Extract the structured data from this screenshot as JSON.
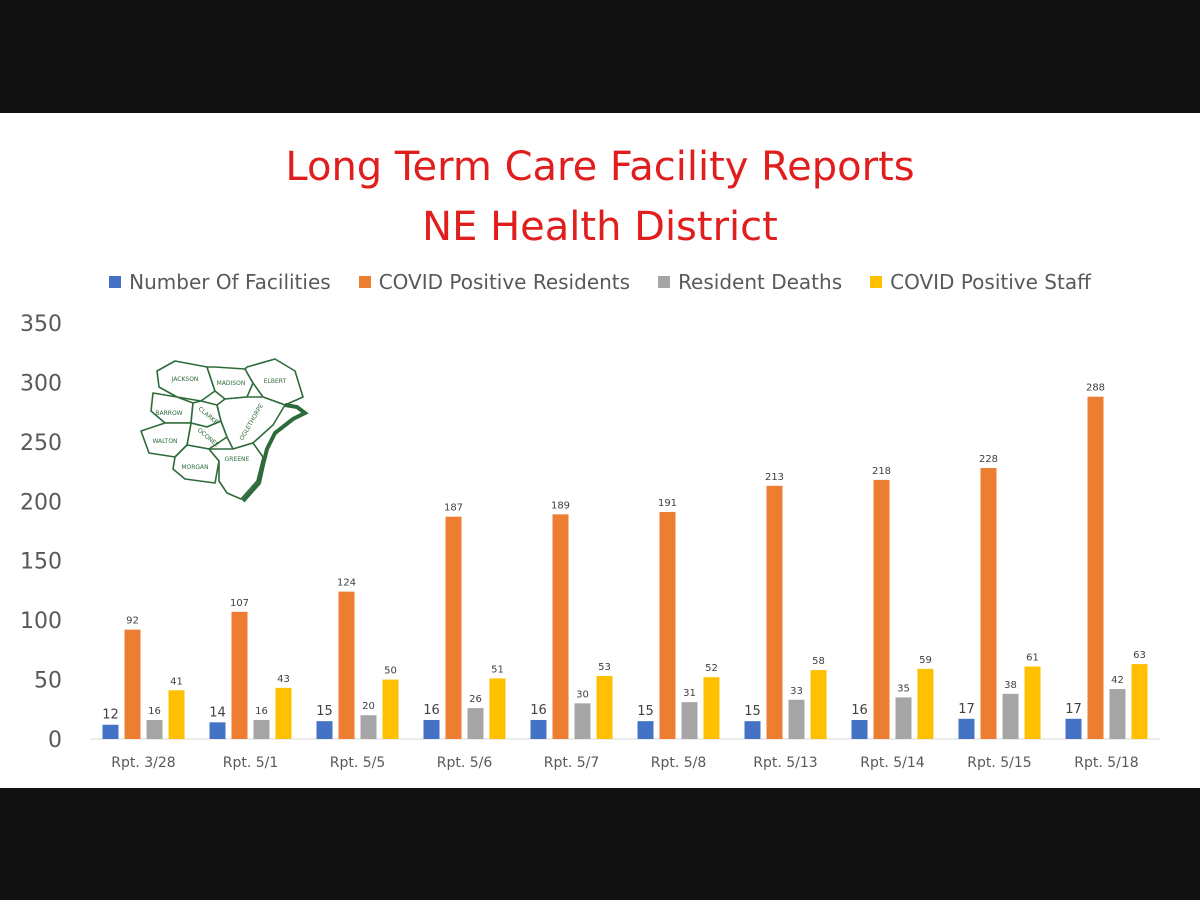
{
  "colors": {
    "title": "#e01e1e",
    "axis_text": "#595959",
    "baseline": "#d9d9d9",
    "map_stroke": "#2e6b3a",
    "background": "#ffffff",
    "frame": "#111111"
  },
  "map": {
    "icon": "county-map-icon",
    "labels": [
      "JACKSON",
      "MADISON",
      "ELBERT",
      "BARROW",
      "CLARKE",
      "OCONEE",
      "OGLETHORPE",
      "WALTON",
      "MORGAN",
      "GREENE"
    ]
  },
  "chart_data": {
    "type": "bar",
    "title": [
      "Long Term Care Facility Reports",
      "NE Health District"
    ],
    "xlabel": "",
    "ylabel": "",
    "categories": [
      "Rpt. 3/28",
      "Rpt. 5/1",
      "Rpt. 5/5",
      "Rpt. 5/6",
      "Rpt. 5/7",
      "Rpt. 5/8",
      "Rpt. 5/13",
      "Rpt. 5/14",
      "Rpt. 5/15",
      "Rpt. 5/18"
    ],
    "ylim": [
      0,
      350
    ],
    "yticks": [
      0,
      50,
      100,
      150,
      200,
      250,
      300,
      350
    ],
    "grid": false,
    "legend_position": "top",
    "series": [
      {
        "name": "Number Of Facilities",
        "color": "#4472c4",
        "values": [
          12,
          14,
          15,
          16,
          16,
          15,
          15,
          16,
          17,
          17
        ]
      },
      {
        "name": "COVID Positive Residents",
        "color": "#ed7d31",
        "values": [
          92,
          107,
          124,
          187,
          189,
          191,
          213,
          218,
          228,
          288
        ]
      },
      {
        "name": "Resident Deaths",
        "color": "#a5a5a5",
        "values": [
          16,
          16,
          20,
          26,
          30,
          31,
          33,
          35,
          38,
          42
        ]
      },
      {
        "name": "COVID Positive Staff",
        "color": "#ffc000",
        "values": [
          41,
          43,
          50,
          51,
          53,
          52,
          58,
          59,
          61,
          63
        ]
      }
    ]
  }
}
